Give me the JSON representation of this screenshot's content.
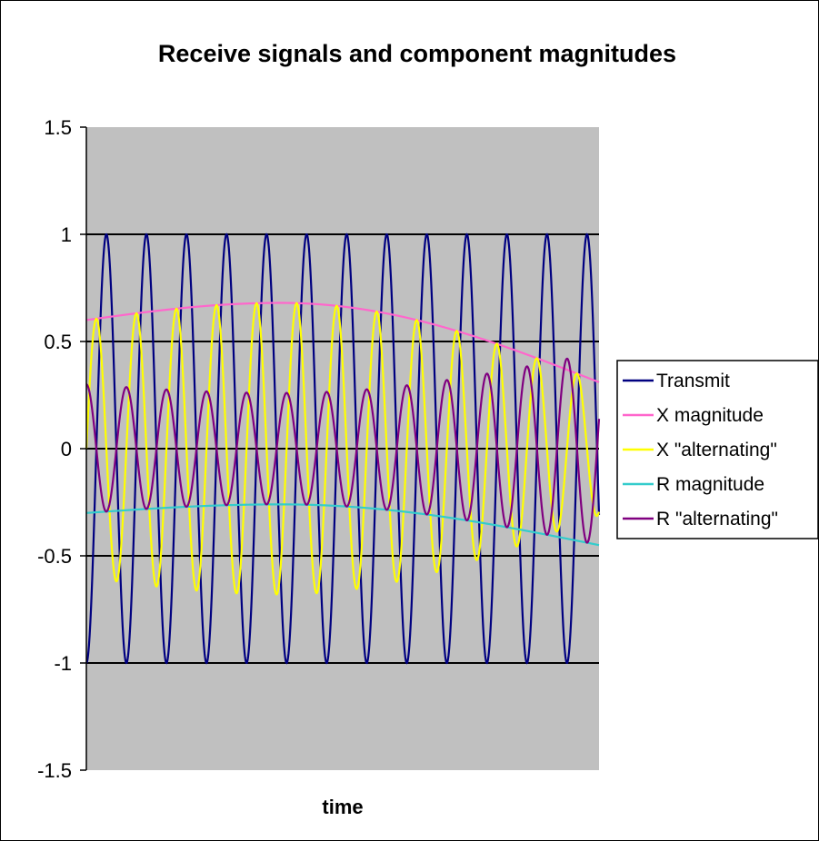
{
  "chart_data": {
    "type": "line",
    "title": "Receive signals and component magnitudes",
    "xlabel": "time",
    "ylabel": "",
    "ylim": [
      -1.5,
      1.5
    ],
    "yticks": [
      "1.5",
      "1",
      "0.5",
      "0",
      "-0.5",
      "-1",
      "-1.5"
    ],
    "ytick_values": [
      1.5,
      1,
      0.5,
      0,
      -0.5,
      -1,
      -1.5
    ],
    "gridlines": [
      1,
      0.5,
      0,
      -0.5,
      -1
    ],
    "x_tick_labels_shown": false,
    "cycles": 12.8,
    "legend_position": "right",
    "plot_background": "#c0c0c0",
    "series": [
      {
        "name": "Transmit",
        "color": "#000080",
        "description_values": {
          "amplitude": 1,
          "phase_deg": -90
        }
      },
      {
        "name": "X magnitude",
        "color": "#ff66cc",
        "description_values": {
          "start": 0.6,
          "peak": 0.68,
          "end": 0.31
        }
      },
      {
        "name": "X \"alternating\"",
        "color": "#ffff00",
        "description_values": {
          "amplitude_envelope": "X magnitude",
          "phase_deg": 0
        }
      },
      {
        "name": "R magnitude",
        "color": "#33cccc",
        "description_values": {
          "start": -0.3,
          "peak": -0.26,
          "end": -0.45
        }
      },
      {
        "name": "R \"alternating\"",
        "color": "#800080",
        "description_values": {
          "amplitude_envelope": "R magnitude",
          "phase_deg": 90
        }
      }
    ]
  }
}
